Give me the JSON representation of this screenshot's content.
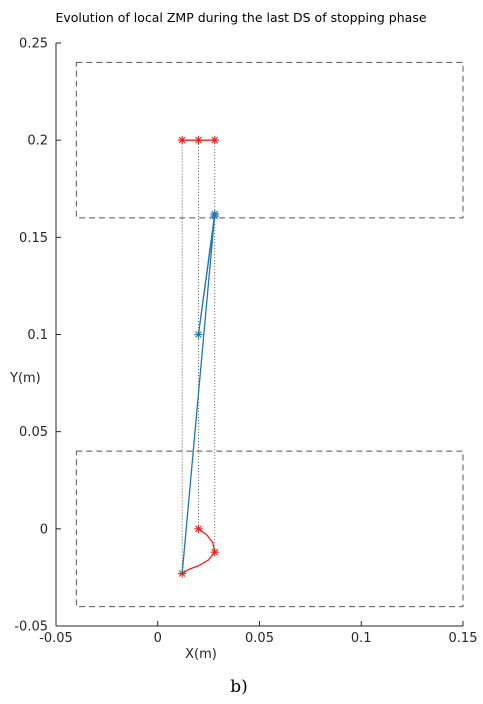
{
  "chart_data": {
    "type": "line",
    "title": "Evolution of local ZMP during the last DS of stopping phase",
    "xlabel": "X(m)",
    "ylabel": "Y(m)",
    "xlim": [
      -0.05,
      0.15
    ],
    "ylim": [
      -0.05,
      0.25
    ],
    "x_ticks": [
      -0.05,
      0,
      0.05,
      0.1,
      0.15
    ],
    "x_tick_labels": [
      "-0.05",
      "0",
      "0.05",
      "0.1",
      "0.15"
    ],
    "y_ticks": [
      -0.05,
      0,
      0.05,
      0.1,
      0.15,
      0.2,
      0.25
    ],
    "y_tick_labels": [
      "-0.05",
      "0",
      "0.05",
      "0.1",
      "0.15",
      "0.2",
      "0.25"
    ],
    "grid": false,
    "caption": "b)",
    "colors": {
      "red": "#e8231f",
      "blue": "#1f77b4",
      "box": "#555555",
      "guide": "#333333"
    },
    "support_regions": [
      {
        "x": [
          -0.04,
          0.15
        ],
        "y": [
          0.16,
          0.24
        ]
      },
      {
        "x": [
          -0.04,
          0.15
        ],
        "y": [
          -0.04,
          0.04
        ]
      }
    ],
    "series": [
      {
        "color": "red",
        "marker": "*",
        "x": [
          0.02,
          0.024,
          0.027,
          0.028,
          0.025,
          0.02,
          0.015,
          0.012
        ],
        "y": [
          0,
          -0.003,
          -0.007,
          -0.012,
          -0.016,
          -0.019,
          -0.021,
          -0.023
        ],
        "marker_indices": [
          0,
          3,
          7
        ]
      },
      {
        "color": "red",
        "marker": "*",
        "x": [
          0.012,
          0.02,
          0.028
        ],
        "y": [
          0.2,
          0.2,
          0.2
        ],
        "marker_indices": [
          0,
          1,
          2
        ]
      },
      {
        "color": "blue",
        "marker": "*",
        "x": [
          0.012,
          0.028,
          0.02,
          0.028
        ],
        "y": [
          -0.023,
          0.162,
          0.1,
          0.161
        ],
        "marker_indices": [
          1,
          2,
          3
        ]
      }
    ],
    "guide_lines": [
      {
        "x": 0.012,
        "y": [
          -0.023,
          0.2
        ]
      },
      {
        "x": 0.02,
        "y": [
          0,
          0.2
        ]
      },
      {
        "x": 0.028,
        "y": [
          -0.012,
          0.2
        ]
      }
    ]
  }
}
